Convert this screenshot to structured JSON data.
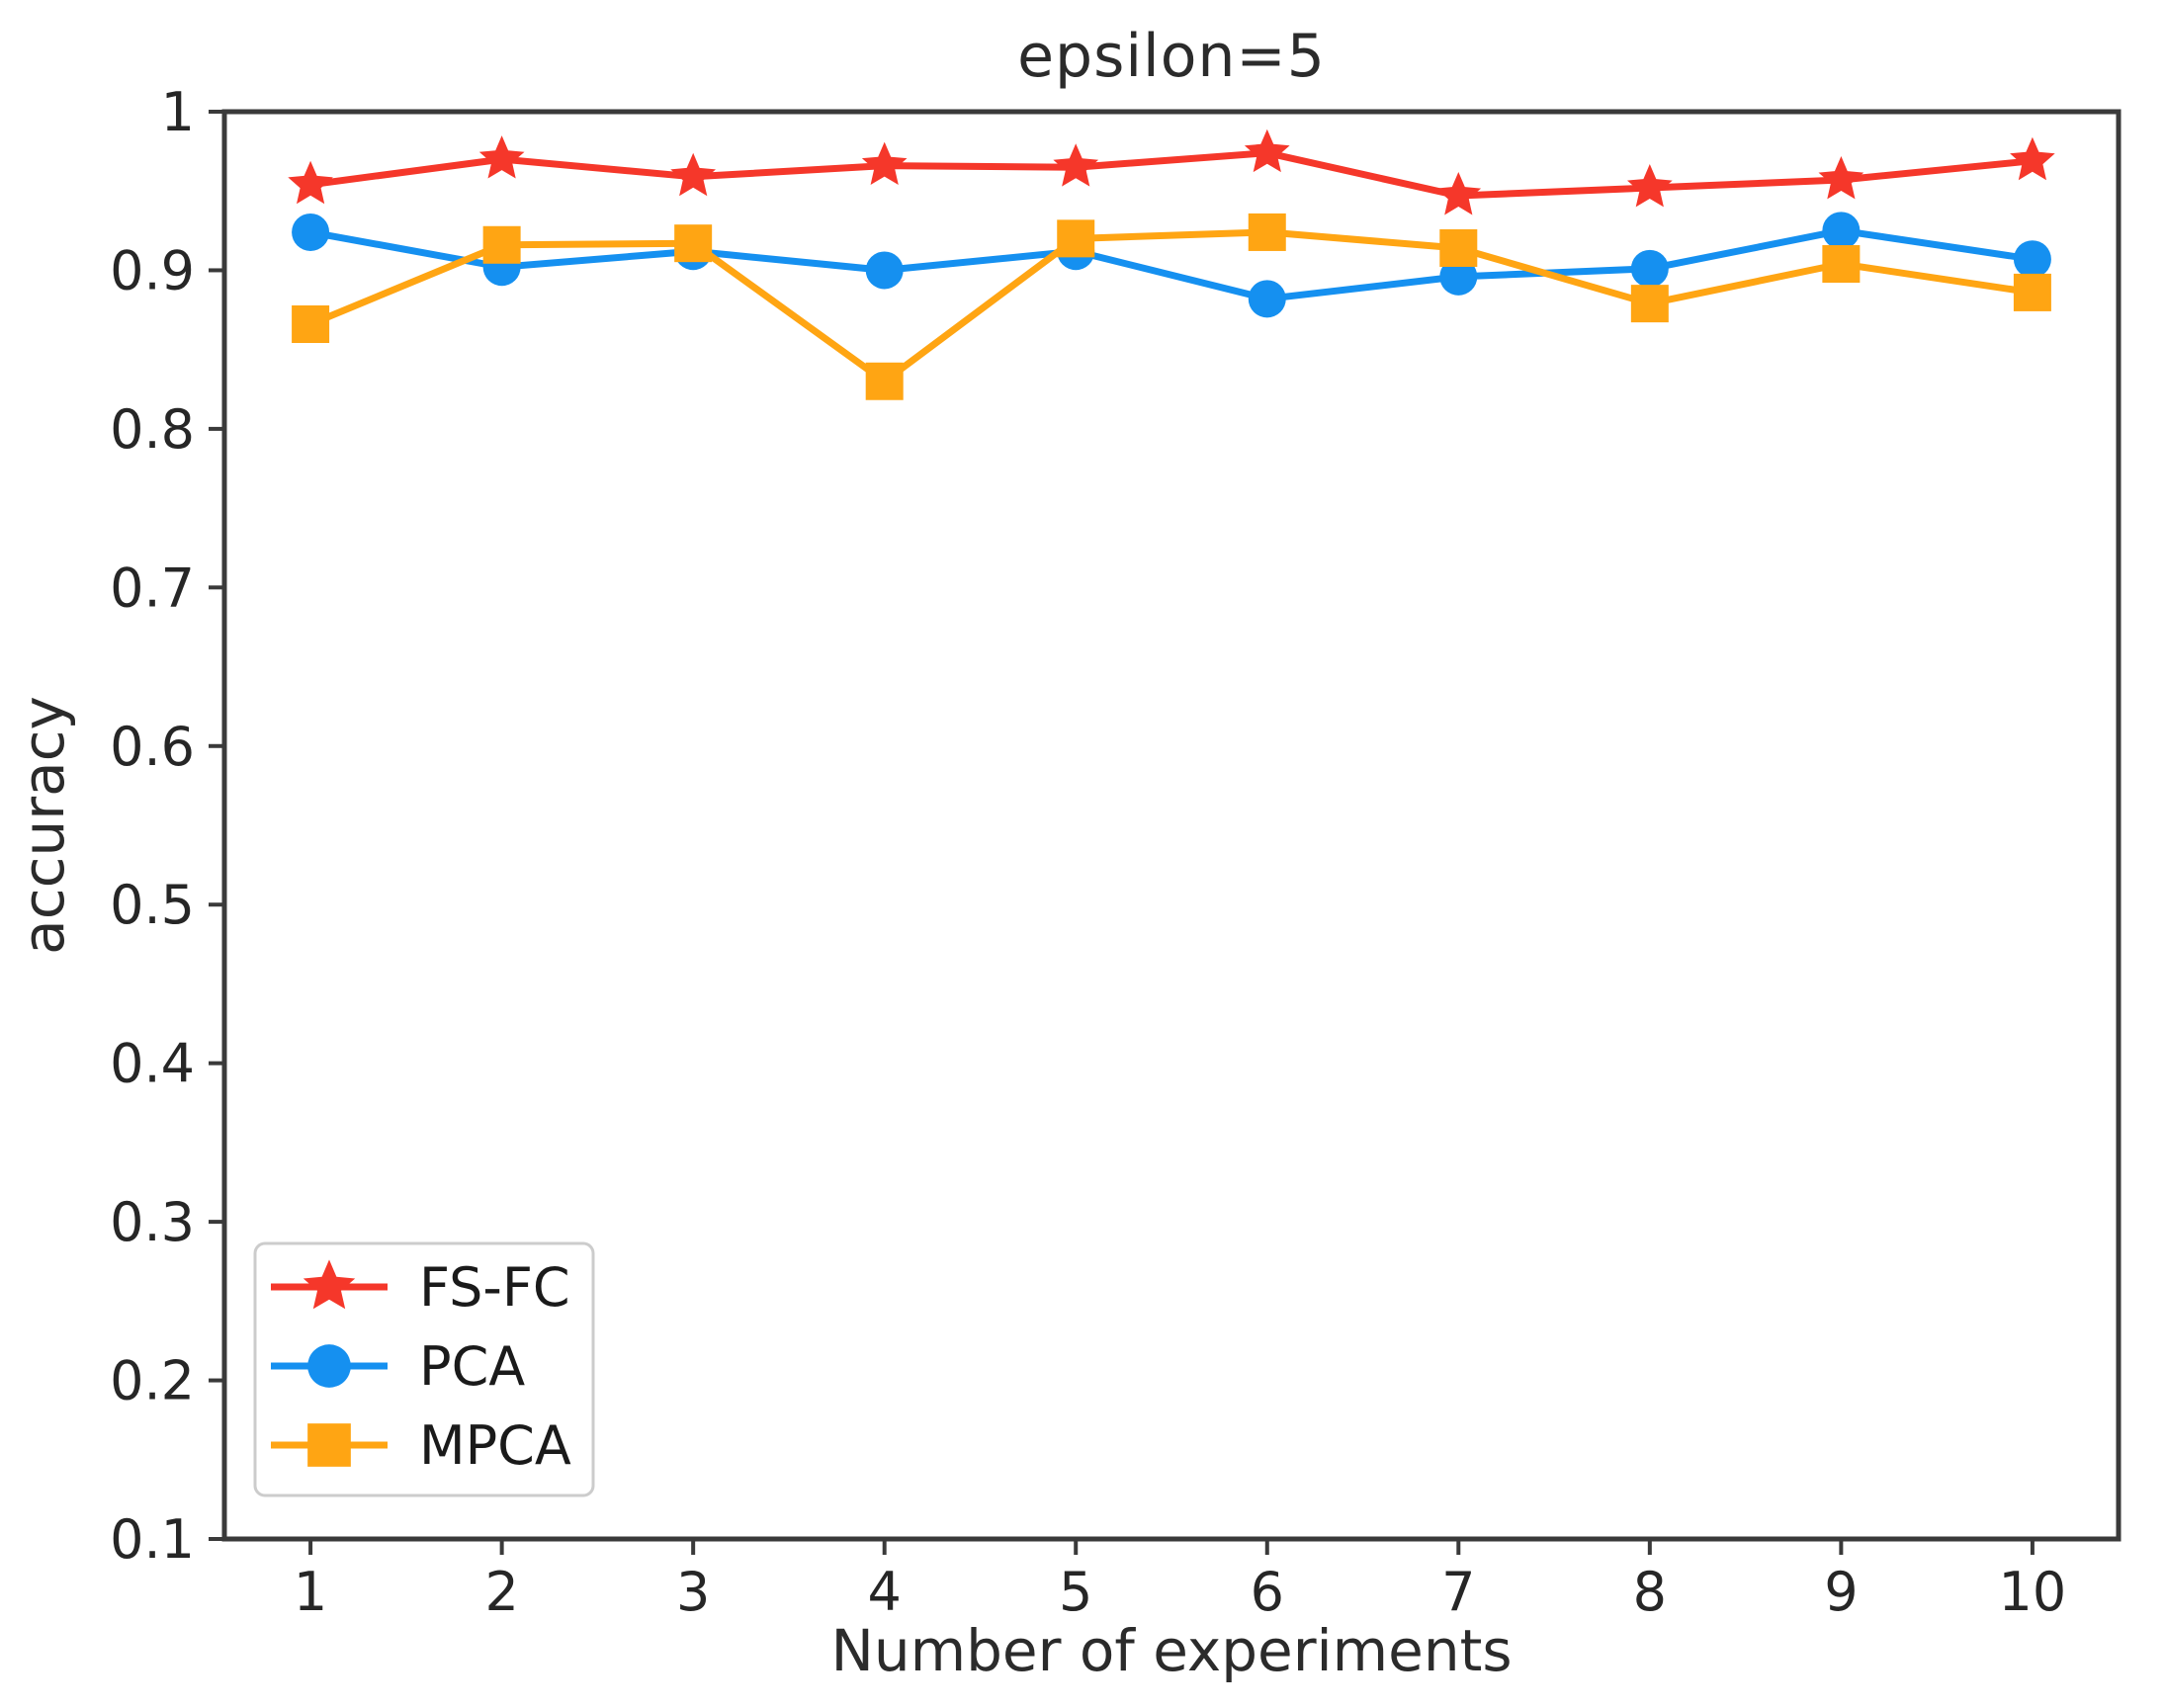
{
  "chart_data": {
    "type": "line",
    "title": "epsilon=5",
    "xlabel": "Number of experiments",
    "ylabel": "accuracy",
    "x": [
      1,
      2,
      3,
      4,
      5,
      6,
      7,
      8,
      9,
      10
    ],
    "xlim": [
      0.55,
      10.45
    ],
    "ylim": [
      0.1,
      1.0
    ],
    "xticks": [
      {
        "value": 1,
        "label": "1"
      },
      {
        "value": 2,
        "label": "2"
      },
      {
        "value": 3,
        "label": "3"
      },
      {
        "value": 4,
        "label": "4"
      },
      {
        "value": 5,
        "label": "5"
      },
      {
        "value": 6,
        "label": "6"
      },
      {
        "value": 7,
        "label": "7"
      },
      {
        "value": 8,
        "label": "8"
      },
      {
        "value": 9,
        "label": "9"
      },
      {
        "value": 10,
        "label": "10"
      }
    ],
    "yticks": [
      {
        "value": 1.0,
        "label": "1"
      },
      {
        "value": 0.9,
        "label": "0.9"
      },
      {
        "value": 0.8,
        "label": "0.8"
      },
      {
        "value": 0.7,
        "label": "0.7"
      },
      {
        "value": 0.6,
        "label": "0.6"
      },
      {
        "value": 0.5,
        "label": "0.5"
      },
      {
        "value": 0.4,
        "label": "0.4"
      },
      {
        "value": 0.3,
        "label": "0.3"
      },
      {
        "value": 0.2,
        "label": "0.2"
      },
      {
        "value": 0.1,
        "label": "0.1"
      }
    ],
    "grid": false,
    "axis_color": "#3a3a3a",
    "legend": {
      "position": "lower-left",
      "entries": [
        "FS-FC",
        "PCA",
        "MPCA"
      ]
    },
    "series": [
      {
        "name": "FS-FC",
        "color": "#f5372a",
        "marker": "star",
        "values": [
          0.954,
          0.97,
          0.959,
          0.966,
          0.965,
          0.974,
          0.947,
          0.952,
          0.957,
          0.969
        ]
      },
      {
        "name": "PCA",
        "color": "#1590f0",
        "marker": "circle",
        "values": [
          0.924,
          0.902,
          0.912,
          0.9,
          0.912,
          0.882,
          0.896,
          0.901,
          0.925,
          0.907
        ]
      },
      {
        "name": "MPCA",
        "color": "#ffa513",
        "marker": "square",
        "values": [
          0.866,
          0.916,
          0.917,
          0.83,
          0.92,
          0.924,
          0.914,
          0.879,
          0.904,
          0.886
        ]
      }
    ]
  }
}
